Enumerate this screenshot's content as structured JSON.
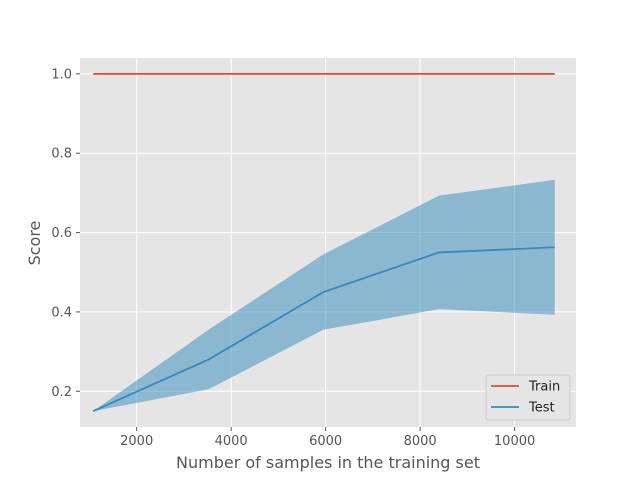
{
  "chart_data": {
    "type": "line",
    "title": "",
    "xlabel": "Number of samples in the training set",
    "ylabel": "Score",
    "xlim": [
      800,
      11300
    ],
    "ylim": [
      0.11,
      1.04
    ],
    "xticks": [
      2000,
      4000,
      6000,
      8000,
      10000
    ],
    "yticks": [
      0.2,
      0.4,
      0.6,
      0.8,
      1.0
    ],
    "grid": true,
    "legend_position": "lower-right",
    "x": [
      1080,
      3520,
      5950,
      8400,
      10850
    ],
    "series": [
      {
        "name": "Train",
        "color": "#E24A33",
        "values": [
          1.0,
          1.0,
          1.0,
          1.0,
          1.0
        ]
      },
      {
        "name": "Test",
        "color": "#348ABD",
        "values": [
          0.15,
          0.28,
          0.45,
          0.55,
          0.563
        ],
        "band_lower": [
          0.15,
          0.205,
          0.355,
          0.407,
          0.393
        ],
        "band_upper": [
          0.15,
          0.355,
          0.545,
          0.693,
          0.733
        ]
      }
    ]
  }
}
